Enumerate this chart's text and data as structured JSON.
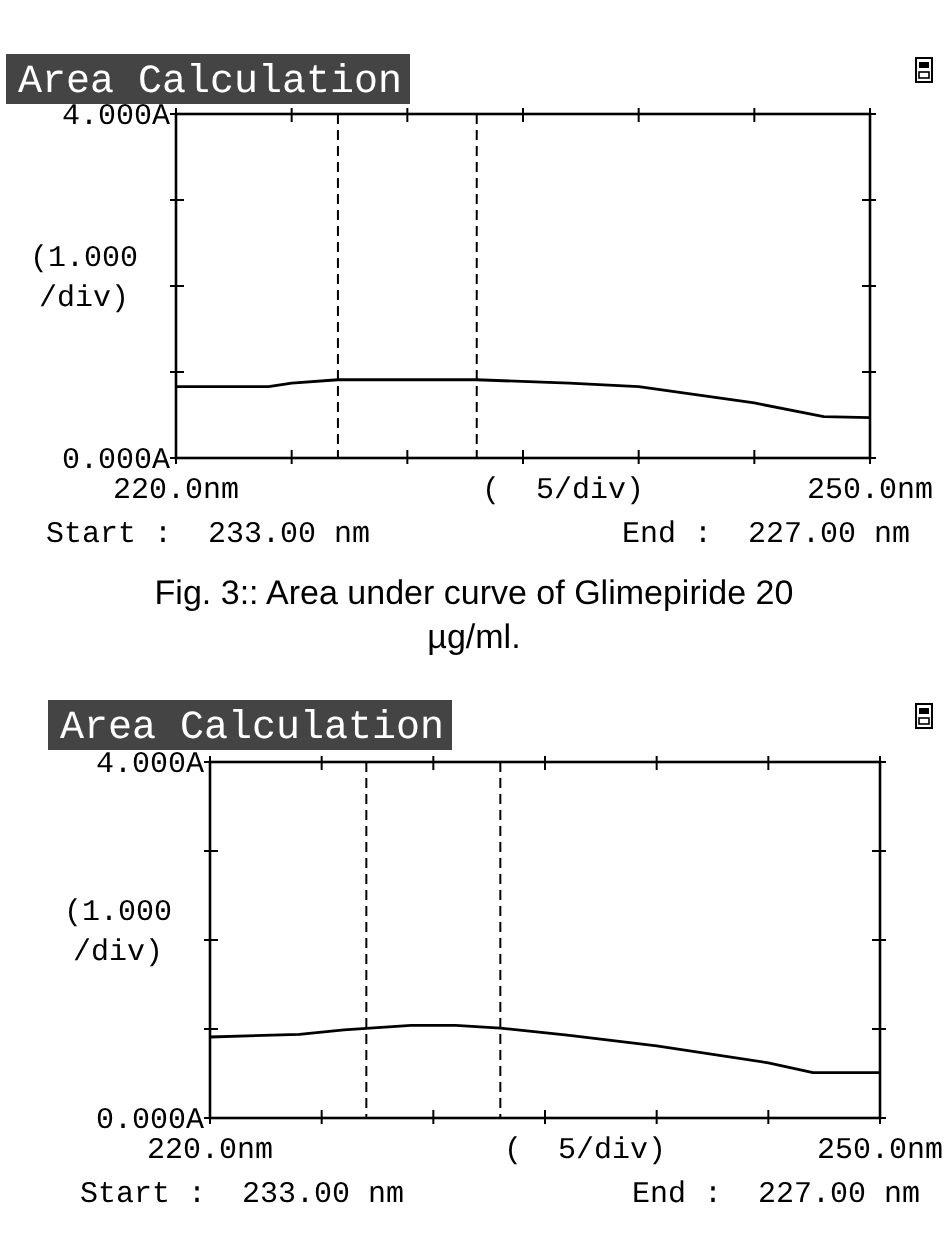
{
  "chart_data": [
    {
      "type": "line",
      "title": "Area Calculation",
      "xlabel": "(  5/div)",
      "ylabel": "(1.000 /div)",
      "annotations": [
        "Start :  233.00 nm",
        "End :  227.00 nm",
        "Fig. 3:: Area under curve of Glimepiride 20 µg/ml."
      ],
      "xlim": [
        220,
        250
      ],
      "ylim": [
        0,
        4
      ],
      "xticks": [
        {
          "value": 220,
          "label": "220.0nm"
        },
        {
          "value": 225,
          "label": null
        },
        {
          "value": 230,
          "label": null
        },
        {
          "value": 235,
          "label": null
        },
        {
          "value": 240,
          "label": null
        },
        {
          "value": 245,
          "label": null
        },
        {
          "value": 250,
          "label": "250.0nm"
        }
      ],
      "yticks": [
        {
          "value": 0,
          "label": "0.000A"
        },
        {
          "value": 1,
          "label": null
        },
        {
          "value": 2,
          "label": null
        },
        {
          "value": 3,
          "label": null
        },
        {
          "value": 4,
          "label": "4.000A"
        }
      ],
      "ref_lines": [
        {
          "axis": "x",
          "value": 227,
          "color": "#000000",
          "line_style": "dashed"
        },
        {
          "axis": "x",
          "value": 233,
          "color": "#000000",
          "line_style": "dashed"
        }
      ],
      "x": [
        220,
        224,
        225,
        227,
        233,
        237,
        240,
        245,
        248,
        250
      ],
      "series": [
        {
          "color": "#000000",
          "values": [
            0.83,
            0.83,
            0.87,
            0.91,
            0.91,
            0.87,
            0.83,
            0.64,
            0.48,
            0.47
          ]
        }
      ]
    },
    {
      "type": "line",
      "title": "Area Calculation",
      "xlabel": "(  5/div)",
      "ylabel": "(1.000 /div)",
      "annotations": [
        "Start :  233.00 nm",
        "End :  227.00 nm"
      ],
      "xlim": [
        220,
        250
      ],
      "ylim": [
        0,
        4
      ],
      "xticks": [
        {
          "value": 220,
          "label": "220.0nm"
        },
        {
          "value": 225,
          "label": null
        },
        {
          "value": 230,
          "label": null
        },
        {
          "value": 235,
          "label": null
        },
        {
          "value": 240,
          "label": null
        },
        {
          "value": 245,
          "label": null
        },
        {
          "value": 250,
          "label": "250.0nm"
        }
      ],
      "yticks": [
        {
          "value": 0,
          "label": "0.000A"
        },
        {
          "value": 1,
          "label": null
        },
        {
          "value": 2,
          "label": null
        },
        {
          "value": 3,
          "label": null
        },
        {
          "value": 4,
          "label": "4.000A"
        }
      ],
      "ref_lines": [
        {
          "axis": "x",
          "value": 227,
          "color": "#000000",
          "line_style": "dashed"
        },
        {
          "axis": "x",
          "value": 233,
          "color": "#000000",
          "line_style": "dashed"
        }
      ],
      "x": [
        220,
        224,
        226,
        229,
        231,
        233,
        236,
        240,
        245,
        247,
        250
      ],
      "series": [
        {
          "color": "#000000",
          "values": [
            0.91,
            0.94,
            0.99,
            1.04,
            1.04,
            1.01,
            0.93,
            0.81,
            0.62,
            0.51,
            0.51
          ]
        }
      ]
    }
  ]
}
